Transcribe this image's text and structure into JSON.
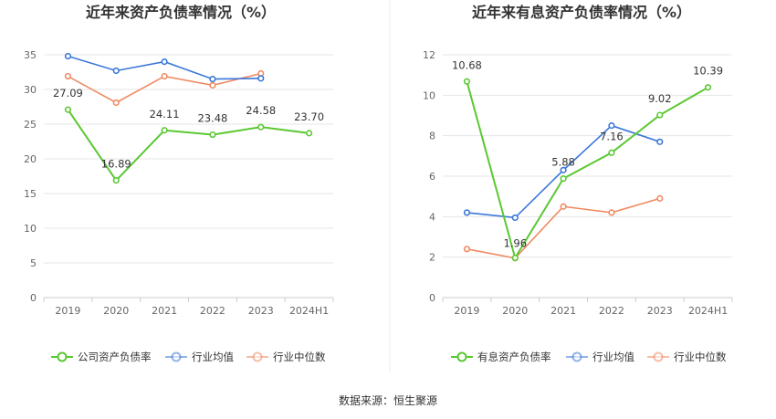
{
  "source": "数据来源：恒生聚源",
  "colors": {
    "company": "#5ac832",
    "average": "#3b77d8",
    "median": "#f08a62",
    "grid": "#e6e6e6",
    "axis": "#cccccc"
  },
  "chart_data": [
    {
      "type": "line",
      "title": "近年来资产负债率情况（%）",
      "categories": [
        "2019",
        "2020",
        "2021",
        "2022",
        "2023",
        "2024H1"
      ],
      "ylim": [
        0,
        35
      ],
      "yticks": [
        0,
        5,
        10,
        15,
        20,
        25,
        30,
        35
      ],
      "legend_position": "bottom",
      "series": [
        {
          "name": "公司资产负债率",
          "values": [
            27.09,
            16.89,
            24.11,
            23.48,
            24.58,
            23.7
          ],
          "labels": [
            "27.09",
            "16.89",
            "24.11",
            "23.48",
            "24.58",
            "23.70"
          ]
        },
        {
          "name": "行业均值",
          "values": [
            34.8,
            32.7,
            34.0,
            31.5,
            31.6,
            null
          ]
        },
        {
          "name": "行业中位数",
          "values": [
            31.9,
            28.1,
            31.9,
            30.6,
            32.3,
            null
          ]
        }
      ]
    },
    {
      "type": "line",
      "title": "近年来有息资产负债率情况（%）",
      "categories": [
        "2019",
        "2020",
        "2021",
        "2022",
        "2023",
        "2024H1"
      ],
      "ylim": [
        0,
        12
      ],
      "yticks": [
        0,
        2,
        4,
        6,
        8,
        10,
        12
      ],
      "legend_position": "bottom",
      "series": [
        {
          "name": "有息资产负债率",
          "values": [
            10.68,
            1.96,
            5.88,
            7.16,
            9.02,
            10.39
          ],
          "labels": [
            "10.68",
            "1.96",
            "5.88",
            "7.16",
            "9.02",
            "10.39"
          ]
        },
        {
          "name": "行业均值",
          "values": [
            4.2,
            3.95,
            6.3,
            8.5,
            7.7,
            null
          ]
        },
        {
          "name": "行业中位数",
          "values": [
            2.4,
            1.95,
            4.5,
            4.2,
            4.9,
            null
          ]
        }
      ]
    }
  ]
}
